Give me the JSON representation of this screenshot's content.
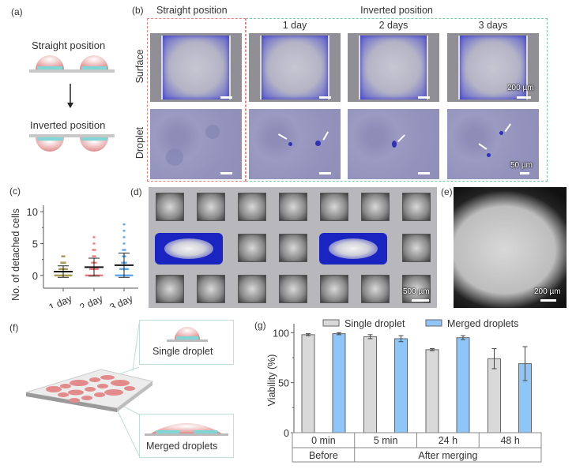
{
  "panels": {
    "a": {
      "label": "(a)",
      "straight": "Straight position",
      "inverted": "Inverted position"
    },
    "b": {
      "label": "(b)",
      "straight_header": "Straight position",
      "inverted_header": "Inverted position",
      "columns": [
        "1 day",
        "2 days",
        "3 days"
      ],
      "rows": [
        "Surface",
        "Droplet"
      ],
      "scale_surface": "200 µm",
      "scale_droplet": "50 µm"
    },
    "c": {
      "label": "(c)"
    },
    "d": {
      "label": "(d)",
      "scale": "500 µm"
    },
    "e": {
      "label": "(e)",
      "scale": "200 µm"
    },
    "f": {
      "label": "(f)",
      "single": "Single droplet",
      "merged": "Merged droplets"
    },
    "g": {
      "label": "(g)",
      "groups": [
        "Before",
        "After merging"
      ]
    }
  },
  "colors": {
    "single": "#d9d9d9",
    "merged": "#8ec7f7",
    "day1": "#a89a4e",
    "day2": "#f07a80",
    "day3": "#5aa8f0",
    "straight_box": "#e88080",
    "inverted_box": "#7cc9a8"
  },
  "chart_data": [
    {
      "type": "scatter",
      "panel": "c",
      "ylabel": "No. of detached cells",
      "categories": [
        "1 day",
        "2 day",
        "3 day"
      ],
      "yticks": [
        0,
        5,
        10
      ],
      "ylim": [
        -2,
        11
      ],
      "mean": [
        0.6,
        1.3,
        1.6
      ],
      "sd": [
        0.9,
        1.4,
        1.9
      ],
      "max": [
        3,
        6,
        8
      ],
      "grid": false
    },
    {
      "type": "bar",
      "panel": "g",
      "ylabel": "Viability (%)",
      "categories": [
        "0 min",
        "5 min",
        "24 h",
        "48 h"
      ],
      "yticks": [
        0,
        50,
        100
      ],
      "ylim": [
        0,
        105
      ],
      "legend": "top",
      "series": [
        {
          "name": "Single droplet",
          "values": [
            98,
            96,
            83,
            74
          ],
          "errors": [
            1,
            2,
            1,
            10
          ]
        },
        {
          "name": "Merged droplets",
          "values": [
            99,
            94,
            95,
            69
          ],
          "errors": [
            1,
            3,
            2,
            17
          ]
        }
      ],
      "grid": false
    }
  ]
}
